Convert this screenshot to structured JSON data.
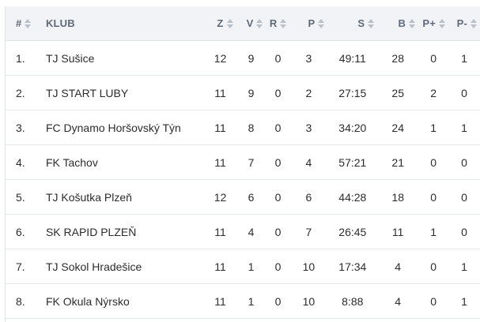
{
  "table": {
    "columns": {
      "rank": "#",
      "club": "KLUB",
      "z": "Z",
      "v": "V",
      "r": "R",
      "p": "P",
      "s": "S",
      "b": "B",
      "pplus": "P+",
      "pminus": "P-"
    },
    "rows": [
      {
        "rank": "1.",
        "club": "TJ Sušice",
        "z": "12",
        "v": "9",
        "r": "0",
        "p": "3",
        "s": "49:11",
        "b": "28",
        "pplus": "0",
        "pminus": "1"
      },
      {
        "rank": "2.",
        "club": "TJ START LUBY",
        "z": "11",
        "v": "9",
        "r": "0",
        "p": "2",
        "s": "27:15",
        "b": "25",
        "pplus": "2",
        "pminus": "0"
      },
      {
        "rank": "3.",
        "club": "FC Dynamo Horšovský Týn",
        "z": "11",
        "v": "8",
        "r": "0",
        "p": "3",
        "s": "34:20",
        "b": "24",
        "pplus": "1",
        "pminus": "1"
      },
      {
        "rank": "4.",
        "club": "FK Tachov",
        "z": "11",
        "v": "7",
        "r": "0",
        "p": "4",
        "s": "57:21",
        "b": "21",
        "pplus": "0",
        "pminus": "0"
      },
      {
        "rank": "5.",
        "club": "TJ Košutka Plzeň",
        "z": "12",
        "v": "6",
        "r": "0",
        "p": "6",
        "s": "44:28",
        "b": "18",
        "pplus": "0",
        "pminus": "0"
      },
      {
        "rank": "6.",
        "club": "SK RAPID PLZEŇ",
        "z": "11",
        "v": "4",
        "r": "0",
        "p": "7",
        "s": "26:45",
        "b": "11",
        "pplus": "1",
        "pminus": "0"
      },
      {
        "rank": "7.",
        "club": "TJ Sokol Hradešice",
        "z": "11",
        "v": "1",
        "r": "0",
        "p": "10",
        "s": "17:34",
        "b": "4",
        "pplus": "0",
        "pminus": "1"
      },
      {
        "rank": "8.",
        "club": "FK Okula Nýrsko",
        "z": "11",
        "v": "1",
        "r": "0",
        "p": "10",
        "s": "8:88",
        "b": "4",
        "pplus": "0",
        "pminus": "1"
      }
    ]
  }
}
